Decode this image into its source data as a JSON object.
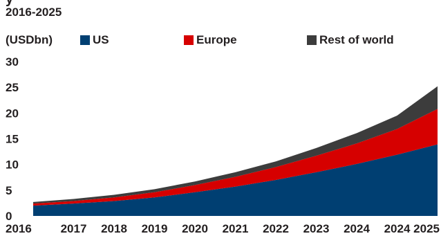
{
  "chart_data": {
    "type": "area",
    "stacked": true,
    "title_fragment": "y",
    "subtitle": "2016-2025",
    "unit_label": "(USDbn)",
    "x": [
      "2016",
      "2017",
      "2018",
      "2019",
      "2020",
      "2021",
      "2022",
      "2023",
      "2024",
      "2024",
      "2025"
    ],
    "ylim": [
      0,
      30
    ],
    "yticks": [
      "0",
      "5",
      "10",
      "15",
      "20",
      "25",
      "30"
    ],
    "grid": false,
    "legend_position": "top",
    "series": [
      {
        "name": "US",
        "color": "#003f72",
        "values": [
          2.0,
          2.4,
          2.9,
          3.6,
          4.6,
          5.7,
          7.0,
          8.5,
          10.1,
          11.9,
          13.9
        ]
      },
      {
        "name": "Europe",
        "color": "#d60000",
        "values": [
          0.4,
          0.5,
          0.7,
          1.0,
          1.4,
          1.9,
          2.5,
          3.2,
          4.0,
          5.0,
          6.9
        ]
      },
      {
        "name": "Rest of world",
        "color": "#3c3c3c",
        "values": [
          0.3,
          0.4,
          0.5,
          0.6,
          0.7,
          0.9,
          1.1,
          1.5,
          2.0,
          2.6,
          4.4
        ]
      }
    ]
  }
}
